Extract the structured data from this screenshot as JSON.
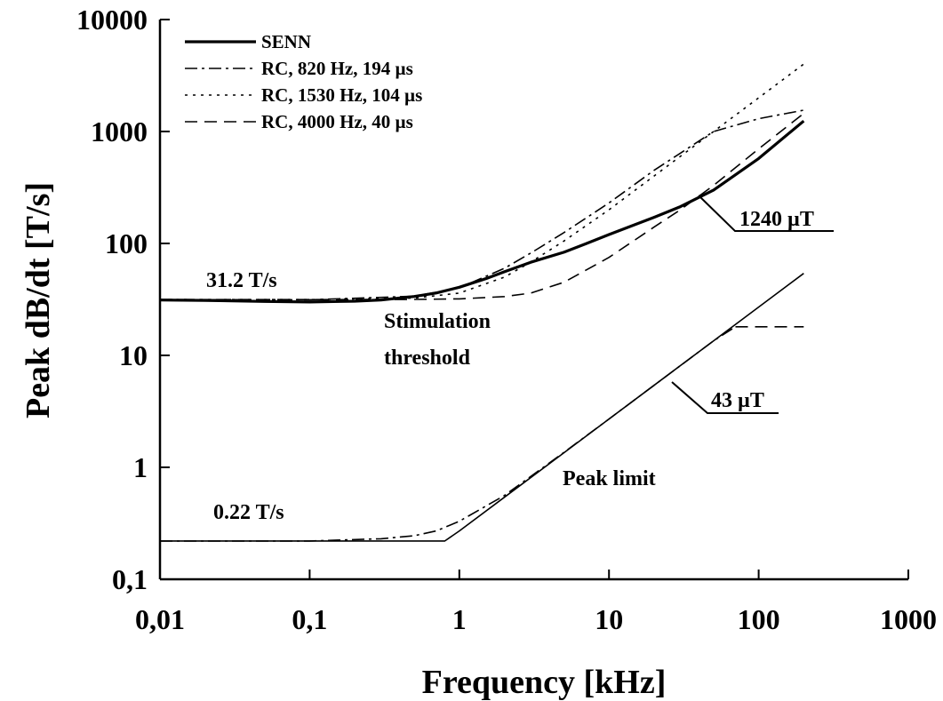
{
  "chart_data": {
    "type": "line",
    "title": "",
    "xlabel": "Frequency [kHz]",
    "ylabel": "Peak dB/dt [T/s]",
    "xscale": "log",
    "yscale": "log",
    "xlim": [
      0.01,
      1000
    ],
    "ylim": [
      0.1,
      10000
    ],
    "x_tick_labels": [
      "0,01",
      "0,1",
      "1",
      "10",
      "100",
      "1000"
    ],
    "x_tick_values": [
      0.01,
      0.1,
      1,
      10,
      100,
      1000
    ],
    "y_tick_labels": [
      "0,1",
      "1",
      "10",
      "100",
      "1000",
      "10000"
    ],
    "y_tick_values": [
      0.1,
      1,
      10,
      100,
      1000,
      10000
    ],
    "grid": false,
    "legend_position": "top-left",
    "series": [
      {
        "name": "SENN",
        "style": "solid",
        "width": "thick",
        "x": [
          0.01,
          0.02,
          0.05,
          0.1,
          0.2,
          0.3,
          0.5,
          0.7,
          1,
          1.5,
          2,
          3,
          5,
          7,
          10,
          20,
          30,
          50,
          100,
          200
        ],
        "y": [
          31.2,
          31.0,
          30.3,
          30.0,
          30.5,
          31.3,
          33.6,
          36.1,
          40.6,
          48.4,
          55.8,
          67.9,
          83.4,
          99.3,
          120,
          171,
          213,
          300,
          574,
          1240
        ]
      },
      {
        "name": "RC, 820 Hz, 194 µs",
        "style": "dash-dot",
        "x": [
          0.01,
          0.1,
          0.5,
          1,
          2,
          3,
          5,
          10,
          20,
          30,
          50,
          100,
          200
        ],
        "y": [
          31.5,
          31.4,
          33.8,
          40.1,
          60,
          82,
          125,
          230,
          450,
          640,
          1000,
          1300,
          1550
        ]
      },
      {
        "name": "RC, 1530 Hz, 104 µs",
        "style": "dotted",
        "x": [
          0.01,
          0.1,
          0.5,
          1,
          2,
          3,
          5,
          10,
          20,
          30,
          50,
          100,
          200
        ],
        "y": [
          31.5,
          31.5,
          32.5,
          36,
          50,
          68,
          105,
          200,
          400,
          600,
          1000,
          2000,
          4000
        ]
      },
      {
        "name": "RC, 4000 Hz, 40 µs",
        "style": "dashed",
        "x": [
          0.01,
          0.1,
          0.5,
          1,
          2,
          3,
          5,
          10,
          20,
          30,
          50,
          100,
          200
        ],
        "y": [
          31.5,
          31.5,
          31.6,
          32,
          33.5,
          36,
          45,
          75,
          140,
          200,
          330,
          700,
          1450
        ]
      },
      {
        "name": "Peak limit (SENN)",
        "style": "solid",
        "x": [
          0.01,
          0.1,
          0.5,
          0.8,
          1,
          2,
          5,
          10,
          20,
          50,
          100,
          200
        ],
        "y": [
          0.22,
          0.22,
          0.22,
          0.22,
          0.27,
          0.54,
          1.35,
          2.7,
          5.4,
          13.5,
          27,
          54
        ]
      },
      {
        "name": "Peak limit (RC)",
        "style": "dash-dot",
        "x": [
          0.01,
          0.1,
          0.3,
          0.5,
          0.7,
          1,
          2,
          5,
          10,
          20,
          50,
          70
        ],
        "y": [
          0.22,
          0.22,
          0.23,
          0.245,
          0.27,
          0.33,
          0.56,
          1.36,
          2.7,
          5.4,
          13.5,
          18
        ]
      },
      {
        "name": "Peak limit (RC, plateau)",
        "style": "dashed",
        "x": [
          70,
          100,
          200
        ],
        "y": [
          18,
          18,
          18
        ]
      }
    ],
    "legend": [
      {
        "label": "SENN",
        "style": "solid"
      },
      {
        "label": "RC, 820 Hz, 194 µs",
        "style": "dash-dot"
      },
      {
        "label": "RC, 1530 Hz, 104 µs",
        "style": "dotted"
      },
      {
        "label": "RC, 4000 Hz, 40 µs",
        "style": "dashed"
      }
    ],
    "annotations": {
      "threshold_value": "31.2 T/s",
      "stim_line1": "Stimulation",
      "stim_line2": "threshold",
      "peak_value": "0.22 T/s",
      "peak_limit": "Peak limit",
      "upper_field": "1240 µT",
      "lower_field": "43 µT"
    }
  }
}
